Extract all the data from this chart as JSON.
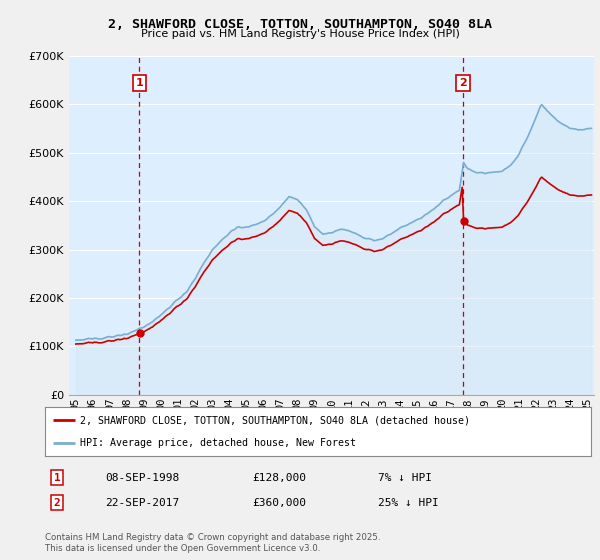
{
  "title": "2, SHAWFORD CLOSE, TOTTON, SOUTHAMPTON, SO40 8LA",
  "subtitle": "Price paid vs. HM Land Registry's House Price Index (HPI)",
  "legend_label_red": "2, SHAWFORD CLOSE, TOTTON, SOUTHAMPTON, SO40 8LA (detached house)",
  "legend_label_blue": "HPI: Average price, detached house, New Forest",
  "footnote": "Contains HM Land Registry data © Crown copyright and database right 2025.\nThis data is licensed under the Open Government Licence v3.0.",
  "transaction1_label": "1",
  "transaction1_date": "08-SEP-1998",
  "transaction1_price": "£128,000",
  "transaction1_note": "7% ↓ HPI",
  "transaction2_label": "2",
  "transaction2_date": "22-SEP-2017",
  "transaction2_price": "£360,000",
  "transaction2_note": "25% ↓ HPI",
  "vline1_x": 1998.72,
  "vline2_x": 2017.72,
  "ylim_min": 0,
  "ylim_max": 700000,
  "xlim_min": 1994.6,
  "xlim_max": 2025.4,
  "red_color": "#cc0000",
  "blue_color": "#7aadce",
  "blue_fill": "#d6e8f5",
  "vline_color": "#cc0000",
  "background_color": "#f0f0f0",
  "plot_bg_color": "#ddeeff",
  "grid_color": "#ffffff"
}
